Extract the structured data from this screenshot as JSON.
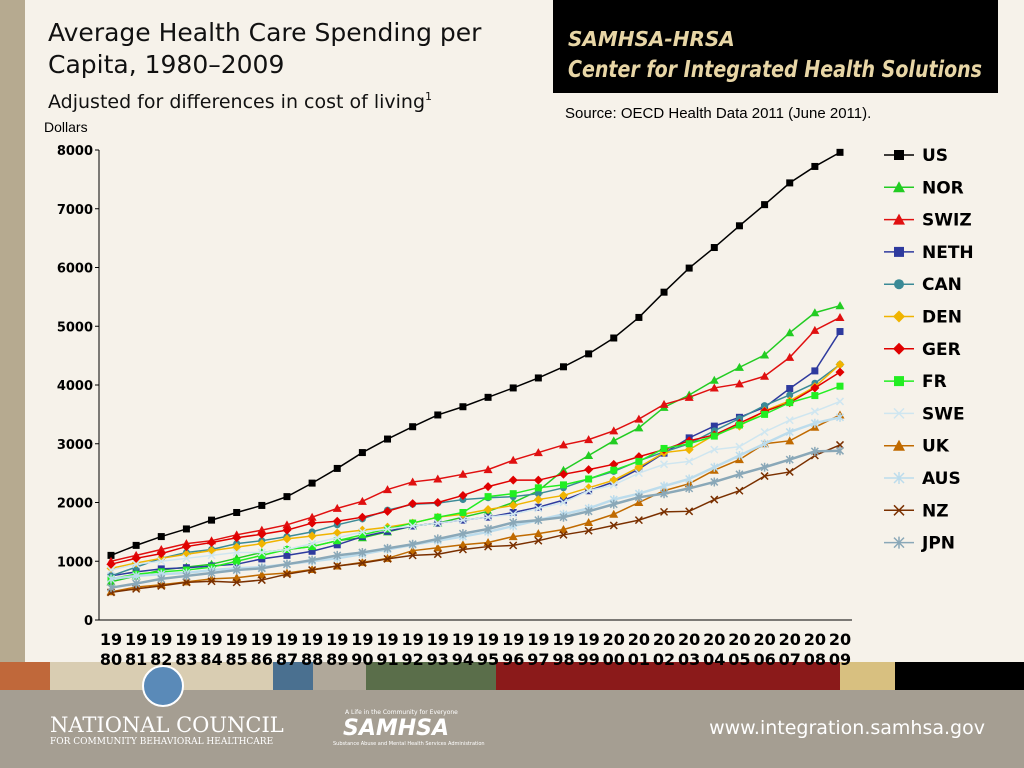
{
  "slide": {
    "header_line1": "SAMHSA-HRSA",
    "header_line2": "Center for Integrated Health Solutions",
    "source": "Source: OECD Health Data 2011 (June 2011).",
    "footer_org": "NATIONAL COUNCIL",
    "footer_org_sub": "FOR COMMUNITY BEHAVIORAL HEALTHCARE",
    "samhsa_tagline": "A Life in the Community for Everyone",
    "samhsa_name": "SAMHSA",
    "samhsa_full": "Substance Abuse and Mental Health Services Administration",
    "website": "www.integration.samhsa.gov"
  },
  "chart_data": {
    "type": "line",
    "title": "Average Health Care Spending per Capita, 1980–2009",
    "subtitle": "Adjusted for differences in cost of living",
    "subtitle_note": "1",
    "y_label": "Dollars",
    "categories": [
      "1980",
      "1981",
      "1982",
      "1983",
      "1984",
      "1985",
      "1986",
      "1987",
      "1988",
      "1989",
      "1990",
      "1991",
      "1992",
      "1993",
      "1994",
      "1995",
      "1996",
      "1997",
      "1998",
      "1999",
      "2000",
      "2001",
      "2002",
      "2003",
      "2004",
      "2005",
      "2006",
      "2007",
      "2008",
      "2009"
    ],
    "ylim": [
      0,
      8000
    ],
    "yticks": [
      0,
      1000,
      2000,
      3000,
      4000,
      5000,
      6000,
      7000,
      8000
    ],
    "legend": "right",
    "series": [
      {
        "name": "US",
        "color": "#000000",
        "marker": "square",
        "values": [
          1100,
          1270,
          1420,
          1550,
          1700,
          1830,
          1950,
          2100,
          2330,
          2580,
          2850,
          3080,
          3290,
          3490,
          3630,
          3790,
          3950,
          4120,
          4310,
          4530,
          4800,
          5150,
          5580,
          5990,
          6340,
          6710,
          7070,
          7440,
          7720,
          7960
        ]
      },
      {
        "name": "NOR",
        "color": "#22cc22",
        "marker": "triangle",
        "values": [
          650,
          750,
          850,
          900,
          950,
          1050,
          1150,
          1200,
          1250,
          1350,
          1400,
          1500,
          1600,
          1650,
          1750,
          1850,
          2000,
          2200,
          2550,
          2800,
          3050,
          3270,
          3620,
          3830,
          4080,
          4300,
          4510,
          4890,
          5230,
          5350
        ]
      },
      {
        "name": "SWIZ",
        "color": "#e01010",
        "marker": "triangle",
        "values": [
          1000,
          1100,
          1200,
          1300,
          1350,
          1450,
          1530,
          1620,
          1750,
          1900,
          2020,
          2220,
          2350,
          2400,
          2480,
          2560,
          2720,
          2850,
          2980,
          3070,
          3220,
          3420,
          3670,
          3790,
          3950,
          4020,
          4150,
          4470,
          4930,
          5150
        ]
      },
      {
        "name": "NETH",
        "color": "#2e3a9e",
        "marker": "square",
        "values": [
          750,
          820,
          870,
          890,
          920,
          950,
          1040,
          1100,
          1170,
          1280,
          1420,
          1510,
          1600,
          1650,
          1700,
          1750,
          1830,
          1920,
          2040,
          2200,
          2350,
          2570,
          2840,
          3100,
          3300,
          3450,
          3620,
          3940,
          4240,
          4910
        ]
      },
      {
        "name": "CAN",
        "color": "#3a8a96",
        "marker": "circle",
        "values": [
          750,
          900,
          1050,
          1150,
          1200,
          1300,
          1350,
          1420,
          1500,
          1620,
          1720,
          1870,
          1970,
          1990,
          2050,
          2080,
          2100,
          2150,
          2250,
          2400,
          2530,
          2710,
          2860,
          3000,
          3220,
          3430,
          3650,
          3830,
          4030,
          4350
        ]
      },
      {
        "name": "DEN",
        "color": "#f0b400",
        "marker": "diamond",
        "values": [
          880,
          970,
          1050,
          1120,
          1180,
          1240,
          1300,
          1380,
          1430,
          1480,
          1530,
          1580,
          1650,
          1750,
          1800,
          1880,
          1950,
          2050,
          2120,
          2250,
          2380,
          2600,
          2850,
          2900,
          3150,
          3300,
          3560,
          3730,
          3970,
          4350
        ]
      },
      {
        "name": "GER",
        "color": "#e00000",
        "marker": "diamond",
        "values": [
          950,
          1050,
          1130,
          1250,
          1320,
          1400,
          1460,
          1530,
          1650,
          1680,
          1750,
          1850,
          1980,
          2000,
          2120,
          2270,
          2380,
          2380,
          2480,
          2560,
          2650,
          2780,
          2900,
          3050,
          3150,
          3350,
          3550,
          3700,
          3950,
          4220
        ]
      },
      {
        "name": "FR",
        "color": "#22ee22",
        "marker": "square",
        "values": [
          700,
          780,
          820,
          850,
          900,
          1000,
          1100,
          1200,
          1250,
          1350,
          1450,
          1550,
          1650,
          1750,
          1830,
          2100,
          2150,
          2250,
          2300,
          2400,
          2550,
          2700,
          2920,
          3000,
          3130,
          3320,
          3500,
          3700,
          3820,
          3980
        ]
      },
      {
        "name": "SWE",
        "color": "#cfe6f0",
        "marker": "x",
        "values": [
          850,
          950,
          1000,
          1050,
          1100,
          1150,
          1150,
          1200,
          1300,
          1400,
          1500,
          1550,
          1600,
          1650,
          1700,
          1750,
          1800,
          1900,
          2000,
          2200,
          2300,
          2500,
          2650,
          2700,
          2900,
          2950,
          3200,
          3400,
          3550,
          3720
        ]
      },
      {
        "name": "UK",
        "color": "#c06a00",
        "marker": "triangle",
        "values": [
          480,
          560,
          600,
          650,
          700,
          720,
          770,
          800,
          860,
          920,
          980,
          1050,
          1180,
          1230,
          1280,
          1320,
          1420,
          1470,
          1540,
          1660,
          1800,
          2000,
          2200,
          2320,
          2550,
          2730,
          3000,
          3050,
          3280,
          3490
        ]
      },
      {
        "name": "AUS",
        "color": "#bcdcec",
        "marker": "asterisk",
        "values": [
          700,
          750,
          780,
          800,
          850,
          880,
          900,
          950,
          1000,
          1050,
          1120,
          1200,
          1280,
          1350,
          1420,
          1500,
          1600,
          1700,
          1800,
          1900,
          2050,
          2150,
          2280,
          2400,
          2600,
          2800,
          3000,
          3200,
          3350,
          3450
        ]
      },
      {
        "name": "NZ",
        "color": "#7a3000",
        "marker": "x",
        "values": [
          470,
          530,
          580,
          640,
          660,
          640,
          680,
          780,
          850,
          920,
          970,
          1040,
          1100,
          1120,
          1200,
          1250,
          1270,
          1350,
          1450,
          1520,
          1610,
          1700,
          1840,
          1850,
          2050,
          2200,
          2450,
          2520,
          2800,
          2980
        ]
      },
      {
        "name": "JPN",
        "color": "#8aa8b8",
        "marker": "asterisk",
        "values": [
          550,
          620,
          700,
          750,
          800,
          850,
          880,
          950,
          1020,
          1100,
          1150,
          1220,
          1290,
          1380,
          1470,
          1550,
          1660,
          1700,
          1750,
          1850,
          1970,
          2090,
          2150,
          2240,
          2350,
          2480,
          2600,
          2730,
          2870,
          2880
        ]
      }
    ]
  }
}
